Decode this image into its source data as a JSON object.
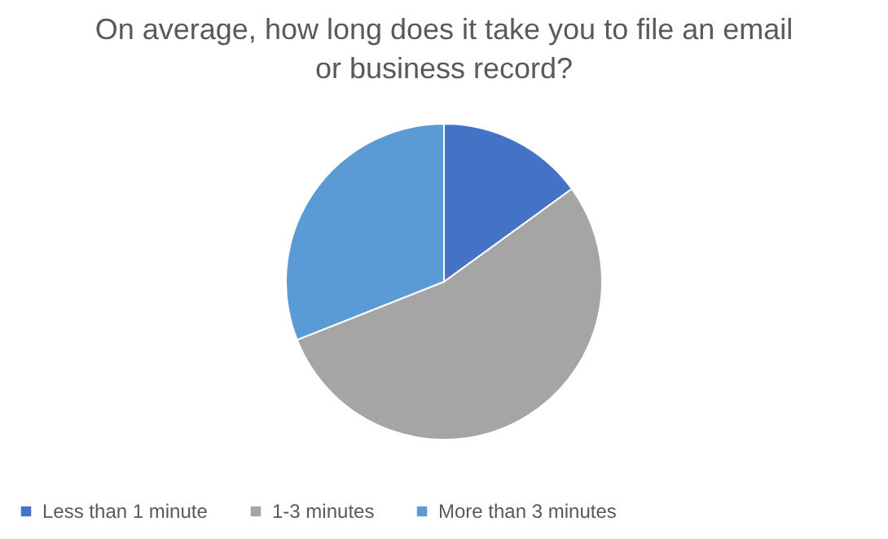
{
  "chart_data": {
    "type": "pie",
    "title": "On average, how long does it take you to file an email or business record?",
    "categories": [
      "Less than 1 minute",
      "1-3 minutes",
      "More than 3 minutes"
    ],
    "values": [
      15,
      54,
      31
    ],
    "colors": [
      "#4472c4",
      "#a5a5a5",
      "#5b9bd5"
    ],
    "legend": "bottom"
  }
}
